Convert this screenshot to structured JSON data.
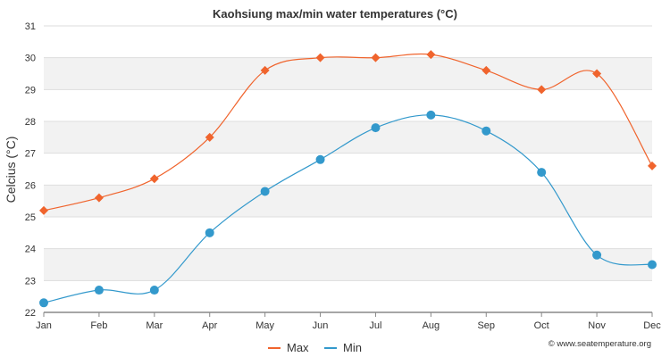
{
  "chart_data": {
    "type": "line",
    "title": "Kaohsiung max/min water temperatures (°C)",
    "xlabel": "",
    "ylabel": "Celcius (°C)",
    "categories": [
      "Jan",
      "Feb",
      "Mar",
      "Apr",
      "May",
      "Jun",
      "Jul",
      "Aug",
      "Sep",
      "Oct",
      "Nov",
      "Dec"
    ],
    "ylim": [
      22,
      31
    ],
    "yticks": [
      "22",
      "23",
      "24",
      "25",
      "26",
      "27",
      "28",
      "29",
      "30",
      "31"
    ],
    "grid": "alternating horizontal bands",
    "legend_position": "bottom-center",
    "series": [
      {
        "name": "Max",
        "color": "#f0642d",
        "marker": "diamond",
        "values": [
          25.2,
          25.6,
          26.2,
          27.5,
          29.6,
          30.0,
          30.0,
          30.1,
          29.6,
          29.0,
          29.5,
          26.6
        ]
      },
      {
        "name": "Min",
        "color": "#3399cc",
        "marker": "circle",
        "values": [
          22.3,
          22.7,
          22.7,
          24.5,
          25.8,
          26.8,
          27.8,
          28.2,
          27.7,
          26.4,
          23.8,
          23.5
        ]
      }
    ],
    "credit": "© www.seatemperature.org"
  }
}
